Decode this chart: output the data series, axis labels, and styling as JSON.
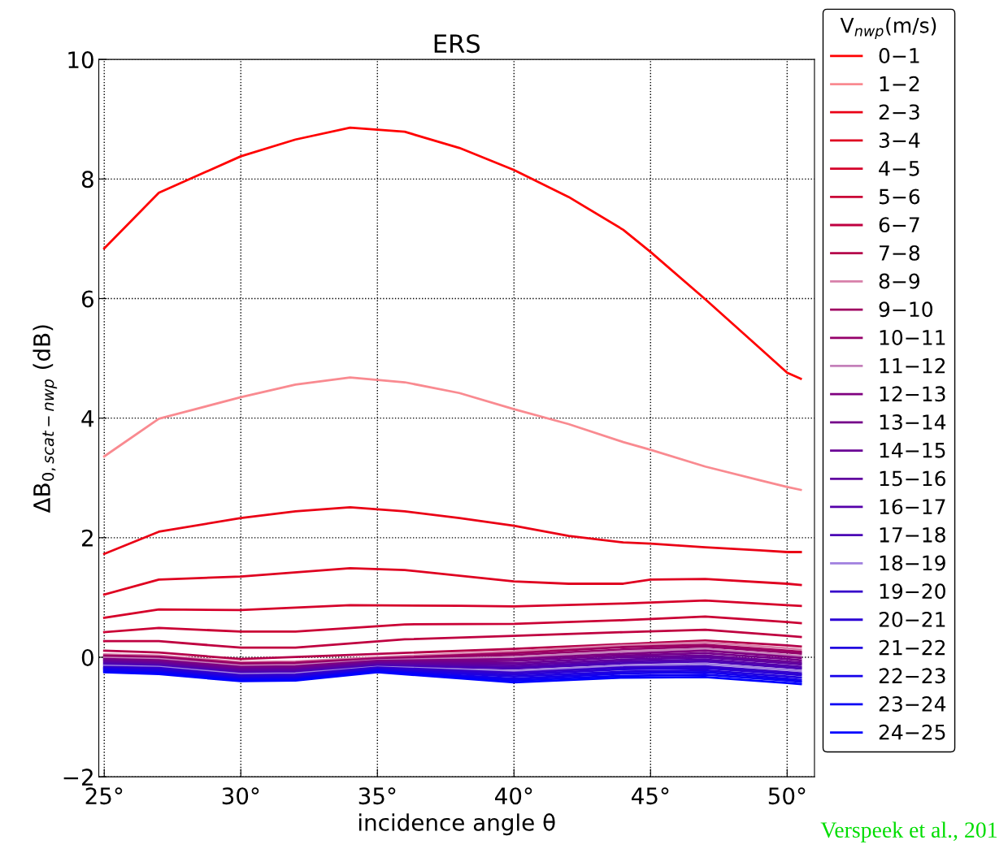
{
  "chart_data": {
    "type": "line",
    "title": "ERS",
    "xlabel": "incidence angle θ",
    "ylabel": "ΔB$_{0,scat−nwp}$ (dB)",
    "legend_title": "V$_{nwp}$(m/s)",
    "xlim": [
      24.8,
      51
    ],
    "ylim": [
      -2,
      10
    ],
    "xticks": [
      {
        "value": 25,
        "label": "25°"
      },
      {
        "value": 30,
        "label": "30°"
      },
      {
        "value": 35,
        "label": "35°"
      },
      {
        "value": 40,
        "label": "40°"
      },
      {
        "value": 45,
        "label": "45°"
      },
      {
        "value": 50,
        "label": "50°"
      }
    ],
    "yticks": [
      {
        "value": -2,
        "label": "−2"
      },
      0,
      2,
      4,
      6,
      8,
      10
    ],
    "grid": true,
    "legend": "right",
    "marker": "none",
    "line_style": "solid",
    "annotations": [
      "Verspeek et al., 201"
    ],
    "series": [
      {
        "name": "0−1",
        "color": "#ff0000",
        "x": [
          25,
          27,
          30,
          32,
          34,
          36,
          38,
          40,
          42,
          44,
          45,
          47,
          49,
          50,
          50.5
        ],
        "values": [
          6.84,
          7.77,
          8.38,
          8.66,
          8.86,
          8.79,
          8.52,
          8.15,
          7.7,
          7.15,
          6.78,
          5.99,
          5.17,
          4.76,
          4.66
        ]
      },
      {
        "name": "1−2",
        "color": "#f98a90",
        "x": [
          25,
          27,
          30,
          32,
          34,
          36,
          38,
          40,
          42,
          44,
          45,
          47,
          49,
          50,
          50.5
        ],
        "values": [
          3.36,
          3.99,
          4.35,
          4.56,
          4.68,
          4.6,
          4.42,
          4.15,
          3.9,
          3.6,
          3.47,
          3.19,
          2.96,
          2.85,
          2.8
        ]
      },
      {
        "name": "2−3",
        "color": "#ea0015",
        "x": [
          25,
          27,
          30,
          32,
          34,
          36,
          38,
          40,
          42,
          44,
          45,
          47,
          49,
          50,
          50.5
        ],
        "values": [
          1.73,
          2.1,
          2.33,
          2.44,
          2.51,
          2.44,
          2.33,
          2.2,
          2.03,
          1.92,
          1.9,
          1.84,
          1.79,
          1.76,
          1.76
        ]
      },
      {
        "name": "3−4",
        "color": "#df0020",
        "x": [
          25,
          27,
          30,
          34,
          36,
          40,
          42,
          44,
          45,
          47,
          50,
          50.5
        ],
        "values": [
          1.05,
          1.3,
          1.35,
          1.49,
          1.46,
          1.27,
          1.23,
          1.23,
          1.3,
          1.31,
          1.23,
          1.21
        ]
      },
      {
        "name": "4−5",
        "color": "#d5002a",
        "x": [
          25,
          27,
          30,
          34,
          38,
          40,
          44,
          47,
          50,
          50.5
        ],
        "values": [
          0.66,
          0.8,
          0.79,
          0.87,
          0.86,
          0.85,
          0.9,
          0.95,
          0.87,
          0.86
        ]
      },
      {
        "name": "5−6",
        "color": "#ca0035",
        "x": [
          25,
          27,
          30,
          32,
          36,
          40,
          44,
          47,
          50,
          50.5
        ],
        "values": [
          0.42,
          0.49,
          0.43,
          0.43,
          0.55,
          0.56,
          0.62,
          0.68,
          0.59,
          0.57
        ]
      },
      {
        "name": "6−7",
        "color": "#bf0040",
        "x": [
          25,
          27,
          30,
          32,
          36,
          40,
          44,
          47,
          50,
          50.5
        ],
        "values": [
          0.27,
          0.27,
          0.16,
          0.16,
          0.3,
          0.36,
          0.42,
          0.46,
          0.36,
          0.34
        ]
      },
      {
        "name": "7−8",
        "color": "#b5004a",
        "x": [
          25,
          27,
          30,
          34,
          40,
          44,
          47,
          50,
          50.5
        ],
        "values": [
          0.11,
          0.08,
          -0.03,
          0.04,
          0.14,
          0.22,
          0.28,
          0.2,
          0.18
        ]
      },
      {
        "name": "8−9",
        "color": "#d880aa",
        "x": [
          25,
          27,
          30,
          32,
          35,
          40,
          44,
          47,
          50,
          50.5
        ],
        "values": [
          0.05,
          0.03,
          -0.08,
          -0.07,
          0.0,
          0.1,
          0.2,
          0.25,
          0.15,
          0.13
        ]
      },
      {
        "name": "9−10",
        "color": "#9f0060",
        "x": [
          25,
          27,
          30,
          32,
          35,
          40,
          44,
          47,
          50,
          50.5
        ],
        "values": [
          0.03,
          0.01,
          -0.1,
          -0.09,
          -0.02,
          0.07,
          0.17,
          0.21,
          0.11,
          0.09
        ]
      },
      {
        "name": "10−11",
        "color": "#95006a",
        "x": [
          25,
          27,
          30,
          32,
          35,
          40,
          44,
          47,
          50,
          50.5
        ],
        "values": [
          0.01,
          -0.01,
          -0.12,
          -0.11,
          -0.03,
          0.04,
          0.13,
          0.18,
          0.08,
          0.06
        ]
      },
      {
        "name": "11−12",
        "color": "#c480ba",
        "x": [
          25,
          27,
          30,
          32,
          35,
          40,
          44,
          47,
          50,
          50.5
        ],
        "values": [
          -0.01,
          -0.03,
          -0.14,
          -0.13,
          -0.05,
          0.0,
          0.1,
          0.14,
          0.04,
          0.02
        ]
      },
      {
        "name": "12−13",
        "color": "#800080",
        "x": [
          25,
          27,
          30,
          32,
          35,
          40,
          44,
          47,
          50,
          50.5
        ],
        "values": [
          -0.03,
          -0.05,
          -0.16,
          -0.15,
          -0.06,
          -0.03,
          0.06,
          0.11,
          0.01,
          -0.01
        ]
      },
      {
        "name": "13−14",
        "color": "#75008a",
        "x": [
          25,
          27,
          30,
          32,
          35,
          40,
          44,
          47,
          50,
          50.5
        ],
        "values": [
          -0.04,
          -0.07,
          -0.18,
          -0.17,
          -0.08,
          -0.06,
          0.03,
          0.07,
          -0.03,
          -0.05
        ]
      },
      {
        "name": "14−15",
        "color": "#6a0095",
        "x": [
          25,
          27,
          30,
          32,
          35,
          40,
          44,
          47,
          50,
          50.5
        ],
        "values": [
          -0.06,
          -0.09,
          -0.2,
          -0.19,
          -0.09,
          -0.1,
          0.0,
          0.03,
          -0.07,
          -0.09
        ]
      },
      {
        "name": "15−16",
        "color": "#60009f",
        "x": [
          25,
          27,
          30,
          32,
          35,
          40,
          44,
          47,
          50,
          50.5
        ],
        "values": [
          -0.08,
          -0.11,
          -0.22,
          -0.21,
          -0.11,
          -0.13,
          -0.04,
          0.0,
          -0.1,
          -0.12
        ]
      },
      {
        "name": "16−17",
        "color": "#5500aa",
        "x": [
          25,
          27,
          30,
          32,
          35,
          40,
          44,
          47,
          50,
          50.5
        ],
        "values": [
          -0.1,
          -0.13,
          -0.24,
          -0.23,
          -0.13,
          -0.16,
          -0.07,
          -0.04,
          -0.14,
          -0.16
        ]
      },
      {
        "name": "17−18",
        "color": "#4a00b5",
        "x": [
          25,
          27,
          30,
          32,
          35,
          40,
          44,
          47,
          50,
          50.5
        ],
        "values": [
          -0.12,
          -0.14,
          -0.26,
          -0.25,
          -0.14,
          -0.19,
          -0.1,
          -0.07,
          -0.17,
          -0.19
        ]
      },
      {
        "name": "18−19",
        "color": "#a080df",
        "x": [
          25,
          27,
          30,
          32,
          35,
          40,
          44,
          47,
          50,
          50.5
        ],
        "values": [
          -0.14,
          -0.16,
          -0.28,
          -0.27,
          -0.16,
          -0.23,
          -0.14,
          -0.11,
          -0.21,
          -0.23
        ]
      },
      {
        "name": "19−20",
        "color": "#3500ca",
        "x": [
          25,
          27,
          30,
          32,
          35,
          40,
          44,
          47,
          50,
          50.5
        ],
        "values": [
          -0.16,
          -0.18,
          -0.3,
          -0.29,
          -0.17,
          -0.26,
          -0.17,
          -0.15,
          -0.25,
          -0.27
        ]
      },
      {
        "name": "20−21",
        "color": "#2a00d5",
        "x": [
          25,
          27,
          30,
          32,
          35,
          40,
          44,
          47,
          50,
          50.5
        ],
        "values": [
          -0.18,
          -0.2,
          -0.32,
          -0.31,
          -0.19,
          -0.29,
          -0.2,
          -0.18,
          -0.28,
          -0.3
        ]
      },
      {
        "name": "21−22",
        "color": "#2000df",
        "x": [
          25,
          27,
          30,
          32,
          35,
          40,
          44,
          47,
          50,
          50.5
        ],
        "values": [
          -0.19,
          -0.22,
          -0.34,
          -0.33,
          -0.2,
          -0.32,
          -0.24,
          -0.22,
          -0.32,
          -0.34
        ]
      },
      {
        "name": "22−23",
        "color": "#1500ea",
        "x": [
          25,
          27,
          30,
          32,
          35,
          40,
          44,
          47,
          50,
          50.5
        ],
        "values": [
          -0.21,
          -0.24,
          -0.36,
          -0.35,
          -0.22,
          -0.36,
          -0.27,
          -0.25,
          -0.36,
          -0.38
        ]
      },
      {
        "name": "23−24",
        "color": "#0b00f4",
        "x": [
          25,
          27,
          30,
          32,
          35,
          40,
          44,
          47,
          50,
          50.5
        ],
        "values": [
          -0.23,
          -0.26,
          -0.38,
          -0.37,
          -0.23,
          -0.39,
          -0.31,
          -0.29,
          -0.39,
          -0.41
        ]
      },
      {
        "name": "24−25",
        "color": "#0000ff",
        "x": [
          25,
          27,
          30,
          32,
          35,
          40,
          44,
          47,
          50,
          50.5
        ],
        "values": [
          -0.25,
          -0.28,
          -0.4,
          -0.39,
          -0.25,
          -0.42,
          -0.34,
          -0.33,
          -0.43,
          -0.45
        ]
      }
    ]
  }
}
